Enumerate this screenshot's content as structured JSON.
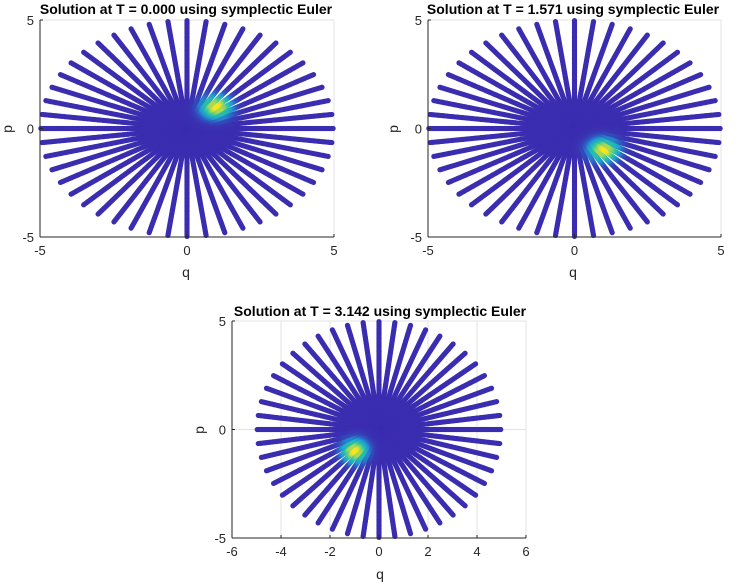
{
  "chart_data": [
    {
      "type": "scatter",
      "title": "Solution at T = 0.000 using symplectic Euler",
      "xlabel": "q",
      "ylabel": "p",
      "xlim": [
        -5,
        5
      ],
      "ylim": [
        -5,
        5
      ],
      "xticks": [
        "-5",
        "0",
        "5"
      ],
      "yticks": [
        "-5",
        "0",
        "5"
      ],
      "grid": true,
      "rays": 48,
      "ray_length": 5,
      "peak": {
        "q": 1.0,
        "p": 1.0
      },
      "aspect": "stretched"
    },
    {
      "type": "scatter",
      "title": "Solution at T = 1.571 using symplectic Euler",
      "xlabel": "q",
      "ylabel": "p",
      "xlim": [
        -5,
        5
      ],
      "ylim": [
        -5,
        5
      ],
      "xticks": [
        "-5",
        "0",
        "5"
      ],
      "yticks": [
        "-5",
        "0",
        "5"
      ],
      "grid": true,
      "rays": 48,
      "ray_length": 5,
      "peak": {
        "q": 1.0,
        "p": -1.0
      },
      "aspect": "stretched"
    },
    {
      "type": "scatter",
      "title": "Solution at T = 3.142 using symplectic Euler",
      "xlabel": "q",
      "ylabel": "p",
      "xlim": [
        -6,
        6
      ],
      "ylim": [
        -5,
        5
      ],
      "xticks": [
        "-6",
        "-4",
        "-2",
        "0",
        "2",
        "4",
        "6"
      ],
      "yticks": [
        "-5",
        "0",
        "5"
      ],
      "grid": true,
      "rays": 48,
      "ray_length": 5,
      "peak": {
        "q": -1.0,
        "p": -1.0
      },
      "aspect": "equal"
    }
  ],
  "colors": {
    "base": "#3b2db0",
    "mid": "#1e9ad6",
    "high": "#2dc7a0",
    "peak": "#f9e51f",
    "grid": "#e3e3e3",
    "axis": "#262626"
  }
}
